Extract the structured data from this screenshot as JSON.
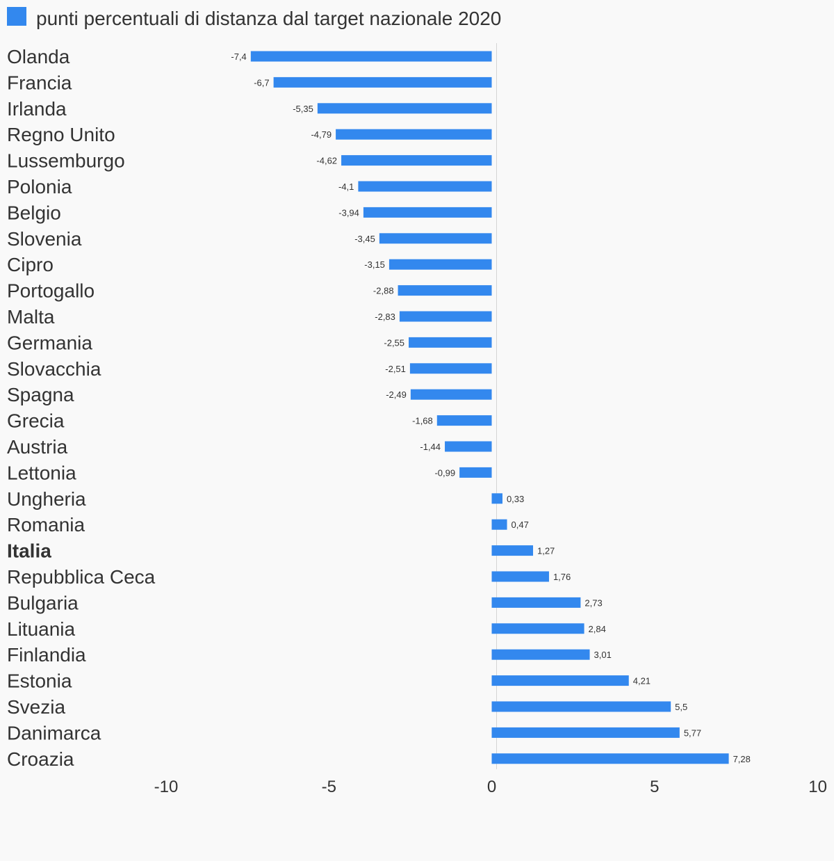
{
  "chart_data": {
    "type": "bar",
    "orientation": "horizontal",
    "categories": [
      "Olanda",
      "Francia",
      "Irlanda",
      "Regno Unito",
      "Lussemburgo",
      "Polonia",
      "Belgio",
      "Slovenia",
      "Cipro",
      "Portogallo",
      "Malta",
      "Germania",
      "Slovacchia",
      "Spagna",
      "Grecia",
      "Austria",
      "Lettonia",
      "Ungheria",
      "Romania",
      "Italia",
      "Repubblica Ceca",
      "Bulgaria",
      "Lituania",
      "Finlandia",
      "Estonia",
      "Svezia",
      "Danimarca",
      "Croazia"
    ],
    "highlighted_category": "Italia",
    "series": [
      {
        "name": "punti percentuali di distanza dal target nazionale 2020",
        "color": "#3388ee",
        "values": [
          -7.4,
          -6.7,
          -5.35,
          -4.79,
          -4.62,
          -4.1,
          -3.94,
          -3.45,
          -3.15,
          -2.88,
          -2.83,
          -2.55,
          -2.51,
          -2.49,
          -1.68,
          -1.44,
          -0.99,
          0.33,
          0.47,
          1.27,
          1.76,
          2.73,
          2.84,
          3.01,
          4.21,
          5.5,
          5.77,
          7.28
        ],
        "value_labels": [
          "-7,4",
          "-6,7",
          "-5,35",
          "-4,79",
          "-4,62",
          "-4,1",
          "-3,94",
          "-3,45",
          "-3,15",
          "-2,88",
          "-2,83",
          "-2,55",
          "-2,51",
          "-2,49",
          "-1,68",
          "-1,44",
          "-0,99",
          "0,33",
          "0,47",
          "1,27",
          "1,76",
          "2,73",
          "2,84",
          "3,01",
          "4,21",
          "5,5",
          "5,77",
          "7,28"
        ]
      }
    ],
    "xlim": [
      -10,
      10
    ],
    "x_ticks": [
      "-10",
      "-5",
      "0",
      "5",
      "10"
    ],
    "legend_position": "top-left",
    "grid": false
  }
}
